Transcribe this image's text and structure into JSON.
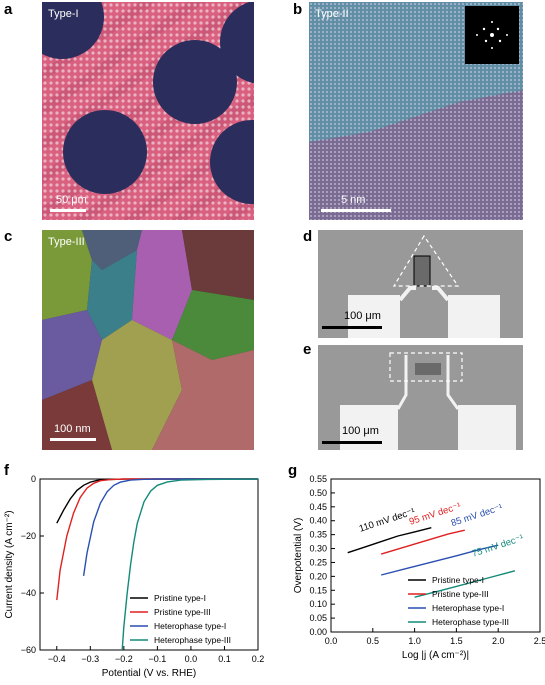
{
  "panels": {
    "a": {
      "letter": "a",
      "label": "Type-I",
      "scale": "50 μm"
    },
    "b": {
      "letter": "b",
      "label": "Type-II",
      "scale": "5 nm"
    },
    "c": {
      "letter": "c",
      "label": "Type-III",
      "scale": "100 nm"
    },
    "d": {
      "letter": "d",
      "scale": "100 μm"
    },
    "e": {
      "letter": "e",
      "scale": "100 μm"
    },
    "f": {
      "letter": "f"
    },
    "g": {
      "letter": "g"
    }
  },
  "colors": {
    "pristine_I": "#000000",
    "pristine_III": "#e02020",
    "hetero_I": "#2a4fb0",
    "hetero_III": "#138a7a"
  },
  "chart_data": [
    {
      "id": "f",
      "type": "line",
      "xlabel": "Potential (V vs. RHE)",
      "ylabel": "Current density (A cm⁻²)",
      "xlim": [
        -0.45,
        0.2
      ],
      "ylim": [
        -60,
        0
      ],
      "xticks": [
        -0.4,
        -0.3,
        -0.2,
        -0.1,
        0.0,
        0.1,
        0.2
      ],
      "xtick_labels": [
        "−0.4",
        "−0.3",
        "−0.2",
        "−0.1",
        "0.0",
        "0.1",
        "0.2"
      ],
      "yticks": [
        0,
        -20,
        -40,
        -60
      ],
      "ytick_labels": [
        "0",
        "−20",
        "−40",
        "−60"
      ],
      "legend": "bottom-right",
      "series": [
        {
          "name": "Pristine type-I",
          "color": "#000000",
          "points": [
            [
              -0.4,
              -15.5
            ],
            [
              -0.38,
              -11
            ],
            [
              -0.36,
              -7
            ],
            [
              -0.34,
              -4
            ],
            [
              -0.32,
              -2.2
            ],
            [
              -0.3,
              -1.1
            ],
            [
              -0.28,
              -0.5
            ],
            [
              -0.25,
              -0.2
            ],
            [
              -0.2,
              -0.05
            ],
            [
              0.0,
              0
            ],
            [
              0.2,
              0
            ]
          ]
        },
        {
          "name": "Pristine type-III",
          "color": "#e02020",
          "points": [
            [
              -0.4,
              -42.5
            ],
            [
              -0.39,
              -32
            ],
            [
              -0.37,
              -20
            ],
            [
              -0.35,
              -12
            ],
            [
              -0.33,
              -6.5
            ],
            [
              -0.31,
              -3.2
            ],
            [
              -0.29,
              -1.5
            ],
            [
              -0.27,
              -0.6
            ],
            [
              -0.24,
              -0.2
            ],
            [
              -0.2,
              0
            ],
            [
              0.2,
              0
            ]
          ]
        },
        {
          "name": "Heterophase type-I",
          "color": "#2a4fb0",
          "points": [
            [
              -0.32,
              -34
            ],
            [
              -0.31,
              -26
            ],
            [
              -0.29,
              -15
            ],
            [
              -0.27,
              -8.5
            ],
            [
              -0.25,
              -4.5
            ],
            [
              -0.23,
              -2.2
            ],
            [
              -0.21,
              -1.1
            ],
            [
              -0.18,
              -0.4
            ],
            [
              -0.14,
              -0.1
            ],
            [
              -0.1,
              0
            ],
            [
              0.2,
              0
            ]
          ]
        },
        {
          "name": "Heterophase type-III",
          "color": "#138a7a",
          "points": [
            [
              -0.205,
              -60
            ],
            [
              -0.2,
              -52
            ],
            [
              -0.19,
              -40
            ],
            [
              -0.18,
              -30
            ],
            [
              -0.17,
              -22
            ],
            [
              -0.16,
              -15.5
            ],
            [
              -0.14,
              -8
            ],
            [
              -0.12,
              -4.2
            ],
            [
              -0.1,
              -2.2
            ],
            [
              -0.07,
              -1
            ],
            [
              -0.03,
              -0.4
            ],
            [
              0.05,
              -0.15
            ],
            [
              0.2,
              0
            ]
          ]
        }
      ]
    },
    {
      "id": "g",
      "type": "line",
      "xlabel": "Log |j (A cm⁻²)|",
      "ylabel": "Overpotential (V)",
      "xlim": [
        0.0,
        2.5
      ],
      "ylim": [
        0.0,
        0.55
      ],
      "xticks": [
        0.0,
        0.5,
        1.0,
        1.5,
        2.0,
        2.5
      ],
      "xtick_labels": [
        "0.0",
        "0.5",
        "1.0",
        "1.5",
        "2.0",
        "2.5"
      ],
      "yticks": [
        0.0,
        0.05,
        0.1,
        0.15,
        0.2,
        0.25,
        0.3,
        0.35,
        0.4,
        0.45,
        0.5,
        0.55
      ],
      "ytick_labels": [
        "0.00",
        "0.05",
        "0.10",
        "0.15",
        "0.20",
        "0.25",
        "0.30",
        "0.35",
        "0.40",
        "0.45",
        "0.50",
        "0.55"
      ],
      "legend": "bottom-right",
      "annotations": [
        {
          "text": "110 mV dec⁻¹",
          "color": "#000000",
          "x": 0.35,
          "y": 0.36
        },
        {
          "text": "95 mV dec⁻¹",
          "color": "#e02020",
          "x": 0.95,
          "y": 0.385
        },
        {
          "text": "85 mV dec⁻¹",
          "color": "#2a4fb0",
          "x": 1.45,
          "y": 0.38
        },
        {
          "text": "75 mV dec⁻¹",
          "color": "#138a7a",
          "x": 1.7,
          "y": 0.27
        }
      ],
      "series": [
        {
          "name": "Pristine type-I",
          "color": "#000000",
          "points": [
            [
              0.2,
              0.285
            ],
            [
              0.4,
              0.305
            ],
            [
              0.6,
              0.325
            ],
            [
              0.8,
              0.345
            ],
            [
              1.0,
              0.36
            ],
            [
              1.2,
              0.375
            ]
          ]
        },
        {
          "name": "Pristine type-III",
          "color": "#e02020",
          "points": [
            [
              0.6,
              0.28
            ],
            [
              0.8,
              0.298
            ],
            [
              1.0,
              0.316
            ],
            [
              1.2,
              0.334
            ],
            [
              1.4,
              0.352
            ],
            [
              1.6,
              0.366
            ]
          ]
        },
        {
          "name": "Heterophase type-I",
          "color": "#2a4fb0",
          "points": [
            [
              0.6,
              0.205
            ],
            [
              0.9,
              0.228
            ],
            [
              1.2,
              0.251
            ],
            [
              1.5,
              0.274
            ],
            [
              1.8,
              0.298
            ],
            [
              2.0,
              0.312
            ]
          ]
        },
        {
          "name": "Heterophase type-III",
          "color": "#138a7a",
          "points": [
            [
              1.0,
              0.125
            ],
            [
              1.3,
              0.148
            ],
            [
              1.6,
              0.172
            ],
            [
              1.9,
              0.196
            ],
            [
              2.2,
              0.22
            ]
          ]
        }
      ]
    }
  ]
}
